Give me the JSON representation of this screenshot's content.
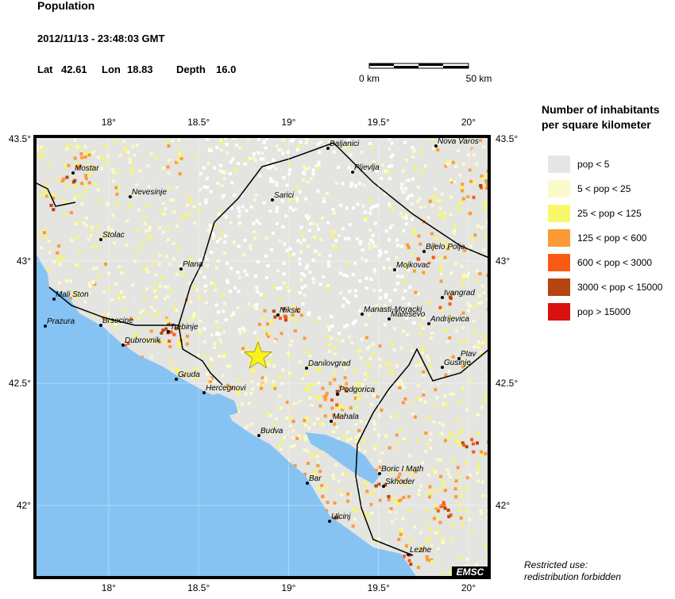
{
  "header": {
    "title": "Population",
    "datetime": "2012/11/13 - 23:48:03 GMT",
    "lat_label": "Lat",
    "lat": 42.61,
    "lon_label": "Lon",
    "lon": 18.83,
    "depth_label": "Depth",
    "depth": "16.0"
  },
  "scale_bar": {
    "start": "0 km",
    "end": "50 km"
  },
  "map": {
    "lon_range": [
      17.59,
      20.115
    ],
    "lat_range": [
      41.705,
      43.51
    ],
    "lon_ticks": [
      {
        "value": 18,
        "label": "18°"
      },
      {
        "value": 18.5,
        "label": "18.5°"
      },
      {
        "value": 19,
        "label": "19°"
      },
      {
        "value": 19.5,
        "label": "19.5°"
      },
      {
        "value": 20,
        "label": "20°"
      }
    ],
    "lat_ticks": [
      {
        "value": 43.5,
        "label": "43.5°"
      },
      {
        "value": 43,
        "label": "43°"
      },
      {
        "value": 42.5,
        "label": "42.5°"
      },
      {
        "value": 42,
        "label": "42°"
      }
    ],
    "cities": [
      "Mostar",
      "Nevesinje",
      "Stolac",
      "Plana",
      "Mali Ston",
      "Prazura",
      "Brsecine",
      "Trebinje",
      "Dubrovnik",
      "Gruda",
      "Hercegnovi",
      "Niksic",
      "Danilovgrad",
      "Podgorica",
      "Mahala",
      "Budva",
      "Bar",
      "Ulcinj",
      "Boric I Math",
      "Skhoder",
      "Lezhe",
      "Sarici",
      "Baljanici",
      "Pljevlja",
      "Nova Varos",
      "Bijelo Polje",
      "Mojkovac",
      "Manasti-Moracki",
      "Matesevo",
      "Andrijevica",
      "Ivangrad",
      "Plav",
      "Gusinje"
    ],
    "credit": "EMSC"
  },
  "legend": {
    "title_line1": "Number of inhabitants",
    "title_line2": "per square kilometer",
    "items": [
      {
        "label": "pop < 5",
        "color": "#e6e6e6"
      },
      {
        "label": "5 < pop < 25",
        "color": "#fbfacb"
      },
      {
        "label": "25 < pop < 125",
        "color": "#f9f76a"
      },
      {
        "label": "125 < pop < 600",
        "color": "#fc9a36"
      },
      {
        "label": "600 < pop < 3000",
        "color": "#fb5a14"
      },
      {
        "label": "3000 < pop < 15000",
        "color": "#b5440f"
      },
      {
        "label": "pop > 15000",
        "color": "#d9120f"
      }
    ]
  },
  "footer": {
    "line1": "Restricted use:",
    "line2": "redistribution forbidden"
  }
}
